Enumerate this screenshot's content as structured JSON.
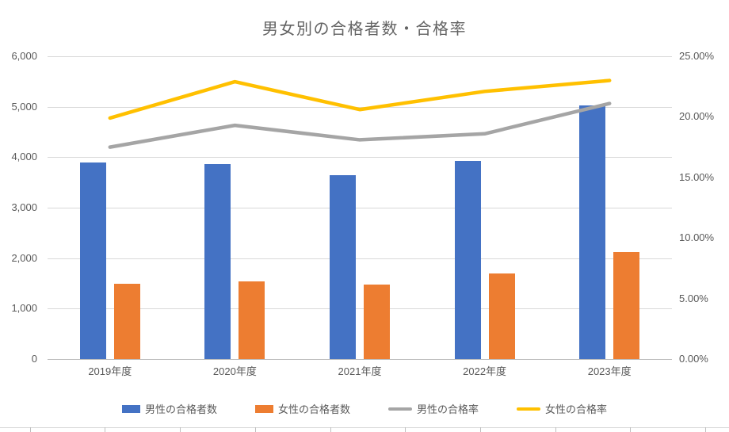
{
  "palette": {
    "background": "#FFFFFF",
    "title_color": "#636363",
    "text_color": "#595959",
    "gridline_color": "#D9D9D9",
    "axis_line_color": "#BFBFBF"
  },
  "chart_data": {
    "type": "combo-bar-line",
    "title": "男女別の合格者数・合格率",
    "categories": [
      "2019年度",
      "2020年度",
      "2021年度",
      "2022年度",
      "2023年度"
    ],
    "series": [
      {
        "key": "male-passers",
        "name": "男性の合格者数",
        "type": "bar",
        "axis": "left",
        "color": "#4472C4",
        "values": [
          3900,
          3860,
          3650,
          3920,
          5020
        ]
      },
      {
        "key": "female-passers",
        "name": "女性の合格者数",
        "type": "bar",
        "axis": "left",
        "color": "#ED7D31",
        "values": [
          1500,
          1540,
          1480,
          1690,
          2120
        ]
      },
      {
        "key": "male-pass-rate",
        "name": "男性の合格率",
        "type": "line",
        "axis": "right",
        "color": "#A5A5A5",
        "values": [
          17.5,
          19.3,
          18.1,
          18.6,
          21.1
        ]
      },
      {
        "key": "female-pass-rate",
        "name": "女性の合格率",
        "type": "line",
        "axis": "right",
        "color": "#FFC000",
        "values": [
          19.9,
          22.9,
          20.6,
          22.1,
          23.0
        ]
      }
    ],
    "left_axis": {
      "min": 0,
      "max": 6000,
      "tick_labels": [
        "0",
        "1,000",
        "2,000",
        "3,000",
        "4,000",
        "5,000",
        "6,000"
      ]
    },
    "right_axis": {
      "min": 0,
      "max": 25,
      "tick_labels": [
        "0.00%",
        "5.00%",
        "10.00%",
        "15.00%",
        "20.00%",
        "25.00%"
      ]
    },
    "grid": true,
    "legend_position": "bottom"
  }
}
